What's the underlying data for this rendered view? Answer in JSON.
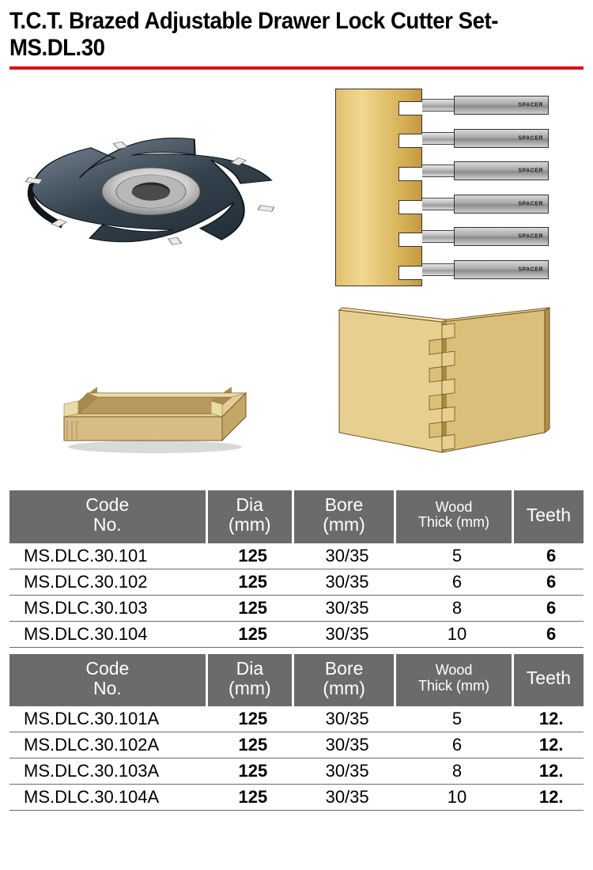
{
  "title": "T.C.T. Brazed Adjustable Drawer Lock Cutter Set- MS.DL.30",
  "accent_color": "#e30613",
  "header_bg": "#6b6b6b",
  "header_fg": "#ffffff",
  "spacer_label": "SPACER",
  "spacer_count": 6,
  "tables": [
    {
      "columns": [
        {
          "l1": "Code",
          "l2": "No."
        },
        {
          "l1": "Dia",
          "l2": "(mm)"
        },
        {
          "l1": "Bore",
          "l2": "(mm)"
        },
        {
          "l1": "Wood",
          "l2": "Thick (mm)",
          "small": true
        },
        {
          "l1": "Teeth",
          "l2": ""
        }
      ],
      "rows": [
        {
          "code": "MS.DLC.30.101",
          "dia": "125",
          "bore": "30/35",
          "thick": "5",
          "teeth": "6"
        },
        {
          "code": "MS.DLC.30.102",
          "dia": "125",
          "bore": "30/35",
          "thick": "6",
          "teeth": "6"
        },
        {
          "code": "MS.DLC.30.103",
          "dia": "125",
          "bore": "30/35",
          "thick": "8",
          "teeth": "6"
        },
        {
          "code": "MS.DLC.30.104",
          "dia": "125",
          "bore": "30/35",
          "thick": "10",
          "teeth": "6"
        }
      ]
    },
    {
      "columns": [
        {
          "l1": "Code",
          "l2": "No."
        },
        {
          "l1": "Dia",
          "l2": "(mm)"
        },
        {
          "l1": "Bore",
          "l2": "(mm)"
        },
        {
          "l1": "Wood",
          "l2": "Thick (mm)",
          "small": true
        },
        {
          "l1": "Teeth",
          "l2": ""
        }
      ],
      "rows": [
        {
          "code": "MS.DLC.30.101A",
          "dia": "125",
          "bore": "30/35",
          "thick": "5",
          "teeth": "12."
        },
        {
          "code": "MS.DLC.30.102A",
          "dia": "125",
          "bore": "30/35",
          "thick": "6",
          "teeth": "12."
        },
        {
          "code": "MS.DLC.30.103A",
          "dia": "125",
          "bore": "30/35",
          "thick": "8",
          "teeth": "12."
        },
        {
          "code": "MS.DLC.30.104A",
          "dia": "125",
          "bore": "30/35",
          "thick": "10",
          "teeth": "12."
        }
      ]
    }
  ],
  "cutter_svg": {
    "body_fill_dark": "#2a3740",
    "body_fill_mid": "#4a5a66",
    "body_fill_light": "#7a8a96",
    "hub_outer": "#cfcfcf",
    "hub_inner": "#9a9a9a",
    "bore": "#3a3a3a",
    "tip": "#dedede"
  },
  "drawer_colors": {
    "face": "#d9bf8e",
    "side": "#c7a968",
    "top": "#e8d6ad",
    "edge": "#7a5a2a",
    "inner": "#b89a60"
  },
  "joint_colors": {
    "left": "#e6cf8f",
    "right": "#d9bf7a",
    "shadow": "#a88a40",
    "inner": "#c9ae6a",
    "edge": "#6e5420"
  }
}
